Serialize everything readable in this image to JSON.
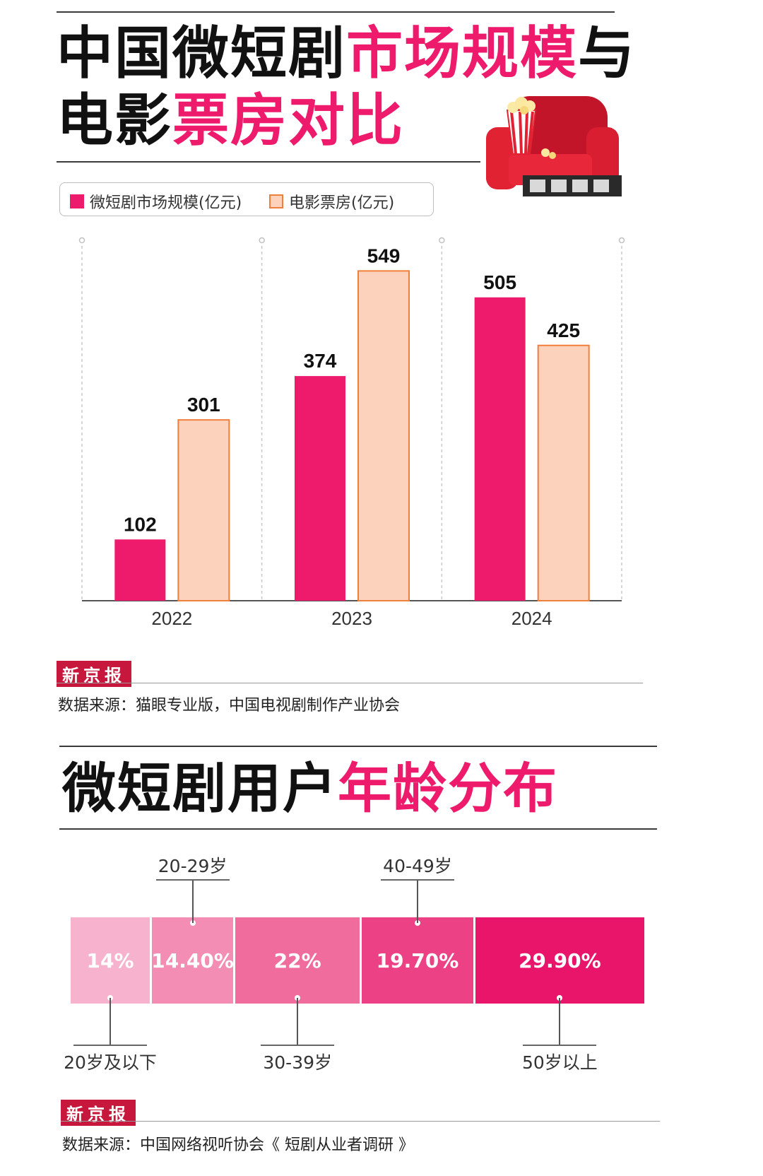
{
  "header": {
    "title_black_1": "中国微短剧",
    "title_pink_1": "市场规模",
    "title_black_2": "与",
    "title_black_3": "电影",
    "title_pink_2": "票房对比"
  },
  "legend": [
    {
      "label": "微短剧市场规模(亿元)",
      "color": "#ee1a6b"
    },
    {
      "label": "电影票房(亿元)",
      "color": "#fcd2bd"
    }
  ],
  "chart_data": {
    "type": "bar",
    "categories": [
      "2022",
      "2023",
      "2024"
    ],
    "series": [
      {
        "name": "微短剧市场规模(亿元)",
        "values": [
          102,
          374,
          505
        ],
        "color": "#ee1a6b"
      },
      {
        "name": "电影票房(亿元)",
        "values": [
          301,
          549,
          425
        ],
        "color": "#fcd2bd",
        "stroke": "#f07f3c"
      }
    ],
    "ylim": [
      0,
      600
    ],
    "grid": "dashed vertical separators",
    "legend_position": "top-left"
  },
  "brand_1": "新京报",
  "source_1": "数据来源：猫眼专业版，中国电视剧制作产业协会",
  "section2": {
    "title_black": "微短剧用户",
    "title_pink": "年龄分布"
  },
  "age_distribution": {
    "type": "stacked-bar",
    "segments": [
      {
        "label": "20岁及以下",
        "value_text": "14%",
        "value": 14,
        "color": "#f7b3cd"
      },
      {
        "label": "20-29岁",
        "value_text": "14.40%",
        "value": 14.4,
        "color": "#f38db3"
      },
      {
        "label": "30-39岁",
        "value_text": "22%",
        "value": 22,
        "color": "#f06c9d"
      },
      {
        "label": "40-49岁",
        "value_text": "19.70%",
        "value": 19.7,
        "color": "#ec4184"
      },
      {
        "label": "50岁以上",
        "value_text": "29.90%",
        "value": 29.9,
        "color": "#e8156b"
      }
    ]
  },
  "brand_2": "新京报",
  "source_2": "数据来源：中国网络视听协会《 短剧从业者调研 》"
}
